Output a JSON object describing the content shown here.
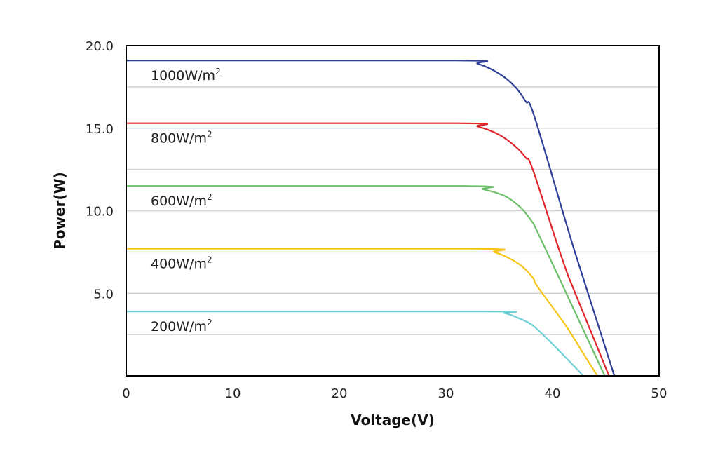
{
  "chart_data": {
    "type": "line",
    "title": "",
    "xlabel": "Voltage(V)",
    "ylabel": "Power(W)",
    "xlim": [
      0,
      50
    ],
    "ylim": [
      0,
      20
    ],
    "x_ticks": [
      0,
      10,
      20,
      30,
      40,
      50
    ],
    "y_ticks": [
      5,
      10,
      15,
      20
    ],
    "x_tick_labels": [
      "0",
      "10",
      "20",
      "30",
      "40",
      "50"
    ],
    "y_tick_labels": [
      "5.0",
      "10.0",
      "15.0",
      "20.0"
    ],
    "grid": "horizontal",
    "grid_values": [
      2.5,
      5,
      7.5,
      10,
      12.5,
      15,
      17.5
    ],
    "series": [
      {
        "name": "1000W/m²",
        "label_text": "1000W/m",
        "label_unit_sup": "2",
        "color": "#2e3f9a",
        "x": [
          0,
          31,
          33,
          35,
          36.5,
          37.5,
          38.3,
          42,
          45.8
        ],
        "y": [
          19.1,
          19.1,
          18.9,
          18.3,
          17.5,
          16.6,
          15.7,
          7.7,
          0
        ]
      },
      {
        "name": "800W/m²",
        "label_text": "800W/m",
        "label_unit_sup": "2",
        "color": "#e0262b",
        "x": [
          0,
          31,
          33,
          35,
          36.5,
          37.5,
          38.2,
          41.5,
          45.3
        ],
        "y": [
          15.3,
          15.3,
          15.1,
          14.6,
          13.9,
          13.2,
          12.4,
          6.0,
          0
        ]
      },
      {
        "name": "600W/m²",
        "label_text": "600W/m",
        "label_unit_sup": "2",
        "color": "#6abf69",
        "x": [
          0,
          31.5,
          33.5,
          35.5,
          37,
          38,
          38.6,
          41.8,
          44.9
        ],
        "y": [
          11.5,
          11.5,
          11.3,
          10.9,
          10.2,
          9.4,
          8.7,
          4.3,
          0
        ]
      },
      {
        "name": "400W/m²",
        "label_text": "400W/m",
        "label_unit_sup": "2",
        "color": "#f6c518",
        "x": [
          0,
          32.5,
          34.5,
          36,
          37.2,
          38.2,
          38.6,
          41.5,
          44.2
        ],
        "y": [
          7.7,
          7.7,
          7.5,
          7.1,
          6.6,
          5.9,
          5.4,
          2.8,
          0
        ]
      },
      {
        "name": "200W/m²",
        "label_text": "200W/m",
        "label_unit_sup": "2",
        "color": "#6fd0d8",
        "x": [
          0,
          33.5,
          35.5,
          36.8,
          37.8,
          38.6,
          40.5,
          42.9
        ],
        "y": [
          3.9,
          3.9,
          3.8,
          3.5,
          3.2,
          2.8,
          1.6,
          0
        ]
      }
    ]
  }
}
